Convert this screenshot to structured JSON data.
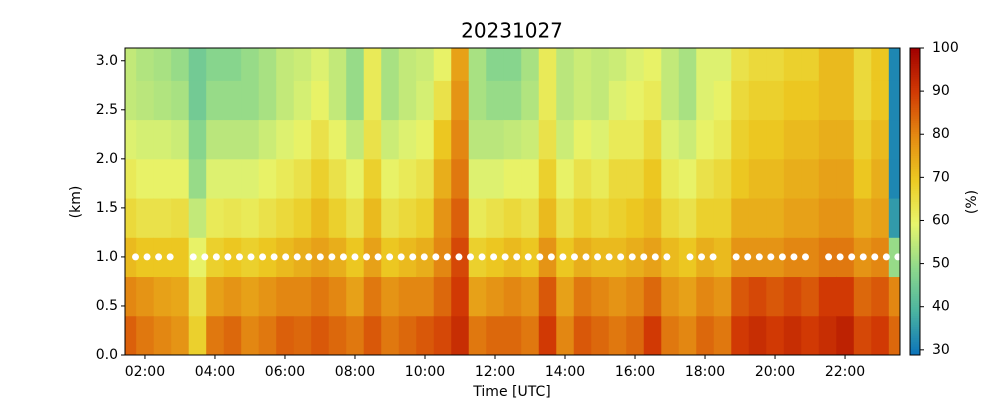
{
  "chart_data": {
    "type": "heatmap",
    "title": "20231027",
    "x_label": "Time [UTC]",
    "y_label": "(km)",
    "colorbar_label": "(%)",
    "xlim": [
      1.43,
      23.57
    ],
    "ylim": [
      0,
      3.13
    ],
    "clim": [
      28.8,
      100
    ],
    "xticks": [
      {
        "value": 2,
        "label": "02:00"
      },
      {
        "value": 4,
        "label": "04:00"
      },
      {
        "value": 6,
        "label": "06:00"
      },
      {
        "value": 8,
        "label": "08:00"
      },
      {
        "value": 10,
        "label": "10:00"
      },
      {
        "value": 12,
        "label": "12:00"
      },
      {
        "value": 14,
        "label": "14:00"
      },
      {
        "value": 16,
        "label": "16:00"
      },
      {
        "value": 18,
        "label": "18:00"
      },
      {
        "value": 20,
        "label": "20:00"
      },
      {
        "value": 22,
        "label": "22:00"
      }
    ],
    "yticks": [
      {
        "value": 0,
        "label": "0.0"
      },
      0.5,
      {
        "value": 1,
        "label": "1.0"
      },
      1.5,
      {
        "value": 2,
        "label": "2.0"
      },
      2.5,
      {
        "value": 3,
        "label": "3.0"
      }
    ],
    "cticks": [
      30,
      40,
      50,
      60,
      70,
      80,
      90,
      100
    ],
    "colors": [
      "#0a72ba",
      "#4bb4a0",
      "#8fd98b",
      "#e8f56c",
      "#ecca22",
      "#e48a12",
      "#d23a04",
      "#a00000"
    ],
    "x": [
      1.5,
      2.0,
      2.5,
      3.0,
      3.5,
      4.0,
      4.5,
      5.0,
      5.5,
      6.0,
      6.5,
      7.0,
      7.5,
      8.0,
      8.5,
      9.0,
      9.5,
      10.0,
      10.5,
      11.0,
      11.5,
      12.0,
      12.5,
      13.0,
      13.5,
      14.0,
      14.5,
      15.0,
      15.5,
      16.0,
      16.5,
      17.0,
      17.5,
      18.0,
      18.5,
      19.0,
      19.5,
      20.0,
      20.5,
      21.0,
      21.5,
      22.0,
      22.5,
      23.0,
      23.5
    ],
    "y": [
      0.2,
      0.6,
      1.0,
      1.4,
      1.8,
      2.2,
      2.6,
      3.0
    ],
    "values": [
      [
        85,
        80,
        72,
        66,
        62,
        58,
        55,
        55
      ],
      [
        82,
        78,
        70,
        64,
        60,
        57,
        54,
        53
      ],
      [
        80,
        76,
        70,
        64,
        60,
        57,
        53,
        52
      ],
      [
        78,
        75,
        70,
        65,
        60,
        56,
        52,
        50
      ],
      [
        68,
        65,
        60,
        55,
        50,
        48,
        45,
        45
      ],
      [
        82,
        76,
        68,
        62,
        58,
        54,
        50,
        48
      ],
      [
        84,
        78,
        70,
        63,
        58,
        54,
        50,
        48
      ],
      [
        80,
        76,
        68,
        62,
        58,
        54,
        50,
        50
      ],
      [
        82,
        78,
        70,
        64,
        60,
        56,
        52,
        52
      ],
      [
        85,
        80,
        72,
        66,
        62,
        58,
        55,
        55
      ],
      [
        84,
        80,
        74,
        68,
        64,
        60,
        57,
        56
      ],
      [
        86,
        82,
        76,
        72,
        68,
        64,
        60,
        58
      ],
      [
        84,
        80,
        74,
        68,
        64,
        60,
        55,
        55
      ],
      [
        82,
        76,
        70,
        64,
        60,
        55,
        50,
        50
      ],
      [
        86,
        82,
        76,
        72,
        68,
        64,
        62,
        62
      ],
      [
        82,
        78,
        70,
        64,
        60,
        56,
        52,
        52
      ],
      [
        84,
        80,
        72,
        66,
        62,
        58,
        55,
        55
      ],
      [
        86,
        80,
        74,
        68,
        64,
        60,
        57,
        56
      ],
      [
        88,
        84,
        80,
        78,
        74,
        70,
        64,
        60
      ],
      [
        92,
        90,
        88,
        85,
        82,
        80,
        78,
        76
      ],
      [
        82,
        76,
        68,
        62,
        58,
        54,
        52,
        52
      ],
      [
        84,
        78,
        70,
        64,
        58,
        54,
        50,
        48
      ],
      [
        84,
        80,
        72,
        66,
        60,
        55,
        50,
        48
      ],
      [
        82,
        78,
        70,
        64,
        60,
        56,
        53,
        52
      ],
      [
        90,
        86,
        78,
        72,
        68,
        64,
        62,
        62
      ],
      [
        80,
        76,
        70,
        64,
        60,
        56,
        54,
        54
      ],
      [
        86,
        82,
        74,
        68,
        64,
        60,
        56,
        56
      ],
      [
        84,
        80,
        72,
        66,
        62,
        58,
        55,
        55
      ],
      [
        82,
        78,
        72,
        68,
        66,
        62,
        58,
        56
      ],
      [
        84,
        80,
        74,
        70,
        66,
        62,
        60,
        58
      ],
      [
        90,
        84,
        76,
        72,
        70,
        66,
        62,
        60
      ],
      [
        82,
        78,
        72,
        66,
        62,
        58,
        55,
        55
      ],
      [
        80,
        76,
        70,
        64,
        60,
        56,
        52,
        52
      ],
      [
        84,
        80,
        74,
        68,
        64,
        60,
        58,
        58
      ],
      [
        82,
        78,
        72,
        68,
        66,
        62,
        60,
        58
      ],
      [
        90,
        86,
        78,
        74,
        70,
        68,
        66,
        64
      ],
      [
        92,
        88,
        78,
        74,
        72,
        70,
        68,
        66
      ],
      [
        90,
        86,
        78,
        74,
        72,
        70,
        68,
        66
      ],
      [
        92,
        88,
        80,
        76,
        74,
        72,
        70,
        68
      ],
      [
        90,
        86,
        80,
        76,
        74,
        72,
        70,
        68
      ],
      [
        92,
        90,
        82,
        78,
        76,
        74,
        72,
        72
      ],
      [
        94,
        90,
        82,
        78,
        76,
        74,
        72,
        72
      ],
      [
        88,
        84,
        78,
        74,
        70,
        68,
        66,
        66
      ],
      [
        90,
        86,
        80,
        76,
        74,
        72,
        70,
        70
      ],
      [
        84,
        80,
        50,
        35,
        32,
        32,
        32,
        32
      ]
    ],
    "markers": {
      "color": "#ffffff",
      "x": [
        1.73,
        2.06,
        2.39,
        2.72,
        3.38,
        3.71,
        4.04,
        4.37,
        4.7,
        5.03,
        5.36,
        5.69,
        6.02,
        6.35,
        6.68,
        7.01,
        7.34,
        7.67,
        8.0,
        8.33,
        8.66,
        8.99,
        9.32,
        9.65,
        9.98,
        10.31,
        10.64,
        10.97,
        11.3,
        11.63,
        11.96,
        12.29,
        12.62,
        12.95,
        13.28,
        13.61,
        13.94,
        14.27,
        14.6,
        14.93,
        15.26,
        15.59,
        15.92,
        16.25,
        16.58,
        16.91,
        17.57,
        17.9,
        18.23,
        18.89,
        19.22,
        19.55,
        19.88,
        20.21,
        20.54,
        20.87,
        21.53,
        21.86,
        22.19,
        22.52,
        22.85,
        23.18,
        23.51
      ],
      "y": [
        1,
        1,
        1,
        1,
        1,
        1,
        1,
        1,
        1,
        1,
        1,
        1,
        1,
        1,
        1,
        1,
        1,
        1,
        1,
        1,
        1,
        1,
        1,
        1,
        1,
        1,
        1,
        1,
        1,
        1,
        1,
        1,
        1,
        1,
        1,
        1,
        1,
        1,
        1,
        1,
        1,
        1,
        1,
        1,
        1,
        1,
        1,
        1,
        1,
        1,
        1,
        1,
        1,
        1,
        1,
        1,
        1,
        1,
        1,
        1,
        1,
        1,
        1
      ]
    }
  }
}
